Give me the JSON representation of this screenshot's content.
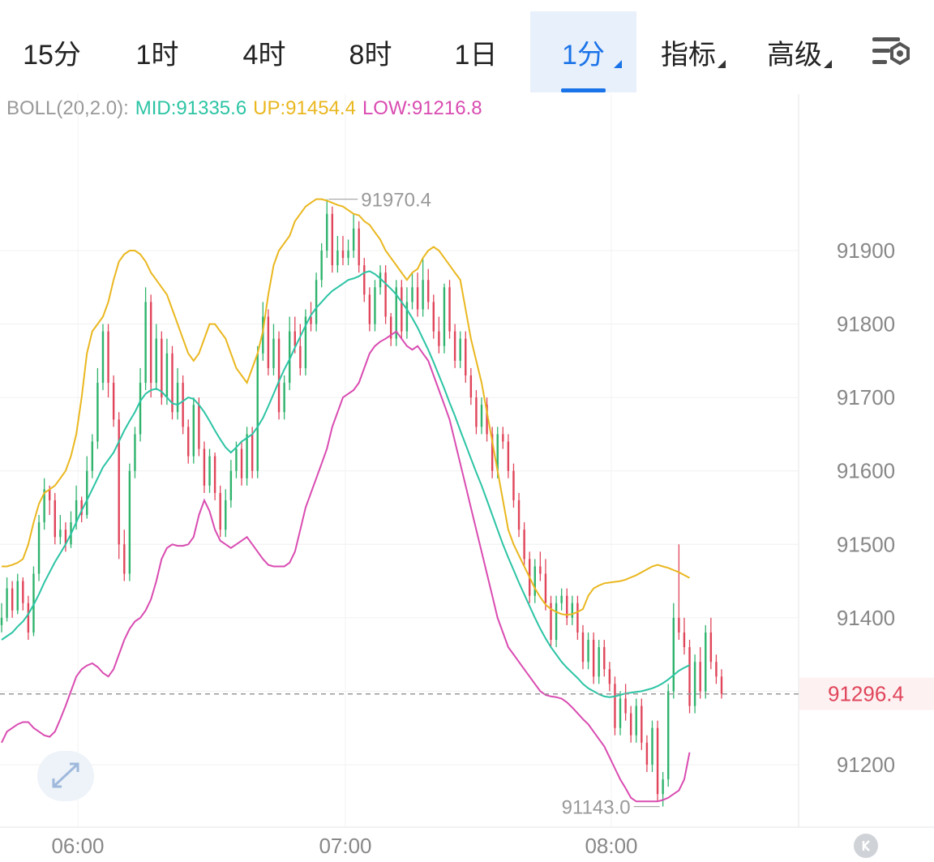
{
  "toolbar": {
    "tabs": [
      {
        "label": "15分",
        "active": false,
        "dropdown": false
      },
      {
        "label": "1时",
        "active": false,
        "dropdown": false
      },
      {
        "label": "4时",
        "active": false,
        "dropdown": false
      },
      {
        "label": "8时",
        "active": false,
        "dropdown": false
      },
      {
        "label": "1日",
        "active": false,
        "dropdown": false
      },
      {
        "label": "1分",
        "active": true,
        "dropdown": true
      },
      {
        "label": "指标",
        "active": false,
        "dropdown": true
      },
      {
        "label": "高级",
        "active": false,
        "dropdown": true
      }
    ],
    "settings_icon": "chart-settings-icon"
  },
  "indicator": {
    "name": "BOLL(20,2.0):",
    "mid": "MID:91335.6",
    "up": "UP:91454.4",
    "low": "LOW:91216.8"
  },
  "colors": {
    "up_candle": "#2fb36d",
    "down_candle": "#e0455a",
    "mid": "#2cc4a4",
    "upper": "#eab71f",
    "lower": "#d94bb1",
    "price_label": "#e0455a",
    "active_tab": "#1a73e8"
  },
  "chart_data": {
    "type": "candlestick",
    "interval": "1分",
    "y_range": [
      91130,
      91990
    ],
    "y_ticks": [
      "91900",
      "91800",
      "91700",
      "91600",
      "91500",
      "91400",
      "91200"
    ],
    "x_ticks": [
      "06:00",
      "07:00",
      "08:00"
    ],
    "current_price": "91296.4",
    "high_label": "91970.4",
    "low_label": "91143.0",
    "candles": [
      [
        91390,
        91400,
        91380,
        91420
      ],
      [
        91400,
        91440,
        91395,
        91455
      ],
      [
        91440,
        91410,
        91400,
        91450
      ],
      [
        91410,
        91450,
        91405,
        91460
      ],
      [
        91450,
        91420,
        91410,
        91455
      ],
      [
        91420,
        91380,
        91370,
        91430
      ],
      [
        91380,
        91460,
        91375,
        91470
      ],
      [
        91460,
        91530,
        91450,
        91540
      ],
      [
        91530,
        91575,
        91520,
        91590
      ],
      [
        91575,
        91560,
        91540,
        91580
      ],
      [
        91560,
        91510,
        91500,
        91570
      ],
      [
        91510,
        91520,
        91500,
        91540
      ],
      [
        91520,
        91500,
        91490,
        91530
      ],
      [
        91500,
        91530,
        91495,
        91545
      ],
      [
        91530,
        91560,
        91520,
        91580
      ],
      [
        91560,
        91540,
        91530,
        91565
      ],
      [
        91540,
        91600,
        91535,
        91620
      ],
      [
        91600,
        91640,
        91590,
        91650
      ],
      [
        91640,
        91720,
        91630,
        91740
      ],
      [
        91720,
        91790,
        91710,
        91800
      ],
      [
        91790,
        91720,
        91700,
        91800
      ],
      [
        91720,
        91670,
        91660,
        91730
      ],
      [
        91670,
        91500,
        91480,
        91680
      ],
      [
        91500,
        91460,
        91450,
        91520
      ],
      [
        91460,
        91600,
        91450,
        91610
      ],
      [
        91600,
        91650,
        91590,
        91660
      ],
      [
        91650,
        91720,
        91640,
        91740
      ],
      [
        91720,
        91830,
        91710,
        91850
      ],
      [
        91830,
        91720,
        91700,
        91840
      ],
      [
        91720,
        91780,
        91710,
        91800
      ],
      [
        91780,
        91700,
        91690,
        91790
      ],
      [
        91700,
        91760,
        91690,
        91780
      ],
      [
        91760,
        91680,
        91670,
        91770
      ],
      [
        91680,
        91720,
        91670,
        91740
      ],
      [
        91720,
        91660,
        91650,
        91730
      ],
      [
        91660,
        91620,
        91610,
        91670
      ],
      [
        91620,
        91690,
        91610,
        91700
      ],
      [
        91690,
        91630,
        91620,
        91700
      ],
      [
        91630,
        91580,
        91570,
        91640
      ],
      [
        91580,
        91620,
        91570,
        91630
      ],
      [
        91620,
        91570,
        91560,
        91625
      ],
      [
        91570,
        91520,
        91510,
        91580
      ],
      [
        91520,
        91560,
        91510,
        91575
      ],
      [
        91560,
        91600,
        91550,
        91615
      ],
      [
        91600,
        91630,
        91590,
        91640
      ],
      [
        91630,
        91590,
        91580,
        91640
      ],
      [
        91590,
        91650,
        91580,
        91660
      ],
      [
        91650,
        91600,
        91590,
        91660
      ],
      [
        91600,
        91760,
        91590,
        91770
      ],
      [
        91760,
        91810,
        91750,
        91830
      ],
      [
        91810,
        91740,
        91730,
        91820
      ],
      [
        91740,
        91780,
        91730,
        91800
      ],
      [
        91780,
        91680,
        91670,
        91790
      ],
      [
        91680,
        91720,
        91670,
        91730
      ],
      [
        91720,
        91790,
        91710,
        91810
      ],
      [
        91790,
        91770,
        91760,
        91810
      ],
      [
        91770,
        91740,
        91730,
        91800
      ],
      [
        91740,
        91810,
        91730,
        91820
      ],
      [
        91810,
        91800,
        91790,
        91830
      ],
      [
        91800,
        91860,
        91790,
        91870
      ],
      [
        91860,
        91900,
        91850,
        91910
      ],
      [
        91900,
        91950,
        91890,
        91970
      ],
      [
        91950,
        91880,
        91870,
        91960
      ],
      [
        91880,
        91900,
        91870,
        91920
      ],
      [
        91900,
        91890,
        91880,
        91920
      ],
      [
        91890,
        91900,
        91880,
        91915
      ],
      [
        91900,
        91930,
        91890,
        91950
      ],
      [
        91930,
        91880,
        91870,
        91940
      ],
      [
        91880,
        91840,
        91830,
        91890
      ],
      [
        91840,
        91800,
        91790,
        91850
      ],
      [
        91800,
        91850,
        91790,
        91860
      ],
      [
        91850,
        91870,
        91840,
        91880
      ],
      [
        91870,
        91810,
        91800,
        91880
      ],
      [
        91810,
        91780,
        91770,
        91815
      ],
      [
        91780,
        91850,
        91770,
        91860
      ],
      [
        91850,
        91790,
        91780,
        91860
      ],
      [
        91790,
        91830,
        91780,
        91850
      ],
      [
        91830,
        91850,
        91820,
        91870
      ],
      [
        91850,
        91820,
        91810,
        91870
      ],
      [
        91820,
        91860,
        91810,
        91890
      ],
      [
        91860,
        91830,
        91820,
        91875
      ],
      [
        91830,
        91790,
        91780,
        91840
      ],
      [
        91790,
        91770,
        91760,
        91810
      ],
      [
        91770,
        91850,
        91760,
        91855
      ],
      [
        91850,
        91790,
        91780,
        91860
      ],
      [
        91790,
        91750,
        91740,
        91800
      ],
      [
        91750,
        91780,
        91740,
        91790
      ],
      [
        91780,
        91730,
        91720,
        91790
      ],
      [
        91730,
        91700,
        91690,
        91740
      ],
      [
        91700,
        91660,
        91650,
        91710
      ],
      [
        91660,
        91690,
        91650,
        91700
      ],
      [
        91690,
        91650,
        91640,
        91700
      ],
      [
        91650,
        91600,
        91590,
        91660
      ],
      [
        91600,
        91650,
        91590,
        91660
      ],
      [
        91650,
        91640,
        91630,
        91660
      ],
      [
        91640,
        91600,
        91590,
        91650
      ],
      [
        91600,
        91560,
        91550,
        91610
      ],
      [
        91560,
        91520,
        91510,
        91570
      ],
      [
        91520,
        91480,
        91470,
        91530
      ],
      [
        91480,
        91430,
        91420,
        91490
      ],
      [
        91430,
        91470,
        91420,
        91480
      ],
      [
        91470,
        91460,
        91450,
        91490
      ],
      [
        91460,
        91420,
        91410,
        91480
      ],
      [
        91420,
        91370,
        91360,
        91430
      ],
      [
        91370,
        91420,
        91360,
        91430
      ],
      [
        91420,
        91430,
        91410,
        91440
      ],
      [
        91430,
        91400,
        91390,
        91440
      ],
      [
        91400,
        91420,
        91390,
        91430
      ],
      [
        91420,
        91380,
        91370,
        91430
      ],
      [
        91380,
        91340,
        91330,
        91390
      ],
      [
        91340,
        91370,
        91330,
        91380
      ],
      [
        91370,
        91320,
        91310,
        91380
      ],
      [
        91320,
        91360,
        91310,
        91370
      ],
      [
        91360,
        91330,
        91320,
        91370
      ],
      [
        91330,
        91310,
        91300,
        91340
      ],
      [
        91310,
        91250,
        91240,
        91320
      ],
      [
        91250,
        91290,
        91240,
        91300
      ],
      [
        91290,
        91270,
        91260,
        91310
      ],
      [
        91270,
        91240,
        91230,
        91280
      ],
      [
        91240,
        91280,
        91230,
        91290
      ],
      [
        91280,
        91230,
        91220,
        91290
      ],
      [
        91230,
        91200,
        91190,
        91240
      ],
      [
        91200,
        91250,
        91190,
        91260
      ],
      [
        91250,
        91160,
        91150,
        91260
      ],
      [
        91160,
        91180,
        91143,
        91190
      ],
      [
        91180,
        91300,
        91170,
        91310
      ],
      [
        91300,
        91400,
        91290,
        91420
      ],
      [
        91400,
        91380,
        91370,
        91500
      ],
      [
        91380,
        91360,
        91350,
        91400
      ],
      [
        91360,
        91280,
        91270,
        91370
      ],
      [
        91280,
        91340,
        91270,
        91350
      ],
      [
        91340,
        91300,
        91290,
        91360
      ],
      [
        91300,
        91380,
        91290,
        91390
      ],
      [
        91380,
        91340,
        91330,
        91400
      ],
      [
        91340,
        91320,
        91310,
        91350
      ],
      [
        91320,
        91296.4,
        91290,
        91330
      ]
    ],
    "series": [
      {
        "name": "MID",
        "values": [
          91370,
          91375,
          91380,
          91388,
          91395,
          91405,
          91418,
          91432,
          91448,
          91462,
          91476,
          91488,
          91500,
          91514,
          91530,
          91546,
          91560,
          91575,
          91590,
          91605,
          91615,
          91625,
          91640,
          91655,
          91668,
          91680,
          91695,
          91705,
          91710,
          91712,
          91708,
          91700,
          91692,
          91690,
          91695,
          91700,
          91698,
          91690,
          91680,
          91668,
          91655,
          91643,
          91632,
          91625,
          91632,
          91640,
          91645,
          91650,
          91660,
          91672,
          91688,
          91705,
          91722,
          91738,
          91752,
          91768,
          91783,
          91798,
          91812,
          91822,
          91830,
          91838,
          91845,
          91850,
          91855,
          91860,
          91862,
          91865,
          91870,
          91872,
          91868,
          91862,
          91855,
          91848,
          91840,
          91830,
          91820,
          91808,
          91795,
          91780,
          91765,
          91748,
          91730,
          91712,
          91693,
          91675,
          91655,
          91636,
          91617,
          91598,
          91580,
          91560,
          91540,
          91520,
          91500,
          91482,
          91465,
          91448,
          91432,
          91416,
          91400,
          91385,
          91372,
          91360,
          91350,
          91340,
          91332,
          91325,
          91318,
          91310,
          91304,
          91300,
          91296,
          91293,
          91292,
          91293,
          91295,
          91297,
          91298,
          91299,
          91300,
          91302,
          91304,
          91307,
          91311,
          91316,
          91322,
          91328,
          91332,
          91335.6
        ]
      },
      {
        "name": "UP",
        "values": [
          91470,
          91470,
          91472,
          91475,
          91480,
          91500,
          91530,
          91555,
          91570,
          91575,
          91580,
          91590,
          91600,
          91620,
          91650,
          91700,
          91760,
          91790,
          91800,
          91810,
          91830,
          91860,
          91885,
          91895,
          91900,
          91900,
          91895,
          91885,
          91870,
          91860,
          91850,
          91840,
          91820,
          91800,
          91780,
          91760,
          91750,
          91760,
          91780,
          91800,
          91800,
          91790,
          91780,
          91760,
          91740,
          91730,
          91720,
          91740,
          91760,
          91790,
          91840,
          91880,
          91900,
          91910,
          91920,
          91940,
          91950,
          91960,
          91965,
          91970,
          91970,
          91968,
          91965,
          91962,
          91960,
          91955,
          91950,
          91948,
          91940,
          91935,
          91925,
          91915,
          91900,
          91890,
          91880,
          91870,
          91860,
          91870,
          91875,
          91890,
          91900,
          91905,
          91900,
          91890,
          91880,
          91870,
          91860,
          91820,
          91780,
          91750,
          91720,
          91680,
          91640,
          91600,
          91560,
          91520,
          91500,
          91485,
          91470,
          91455,
          91440,
          91428,
          91418,
          91412,
          91408,
          91405,
          91404,
          91405,
          91408,
          91412,
          91430,
          91440,
          91444,
          91447,
          91448,
          91449,
          91450,
          91452,
          91455,
          91458,
          91462,
          91466,
          91470,
          91472,
          91470,
          91468,
          91465,
          91462,
          91458,
          91454.4
        ]
      },
      {
        "name": "LOW",
        "values": [
          91230,
          91245,
          91250,
          91255,
          91258,
          91258,
          91250,
          91245,
          91240,
          91238,
          91245,
          91262,
          91280,
          91300,
          91320,
          91330,
          91335,
          91338,
          91333,
          91325,
          91320,
          91330,
          91350,
          91370,
          91385,
          91395,
          91400,
          91410,
          91425,
          91450,
          91480,
          91495,
          91500,
          91498,
          91498,
          91500,
          91510,
          91540,
          91560,
          91545,
          91520,
          91505,
          91500,
          91495,
          91500,
          91505,
          91510,
          91500,
          91490,
          91480,
          91472,
          91470,
          91470,
          91470,
          91475,
          91490,
          91520,
          91550,
          91570,
          91590,
          91610,
          91630,
          91660,
          91680,
          91700,
          91705,
          91710,
          91720,
          91740,
          91760,
          91770,
          91776,
          91780,
          91785,
          91790,
          91780,
          91770,
          91765,
          91770,
          91760,
          91750,
          91730,
          91710,
          91690,
          91670,
          91640,
          91610,
          91580,
          91550,
          91520,
          91490,
          91460,
          91430,
          91400,
          91380,
          91360,
          91350,
          91340,
          91330,
          91320,
          91310,
          91300,
          91295,
          91293,
          91292,
          91290,
          91285,
          91278,
          91270,
          91262,
          91255,
          91245,
          91235,
          91225,
          91210,
          91195,
          91180,
          91168,
          91155,
          91150,
          91150,
          91150,
          91150,
          91150,
          91152,
          91155,
          91160,
          91165,
          91180,
          91216.8
        ]
      }
    ]
  }
}
